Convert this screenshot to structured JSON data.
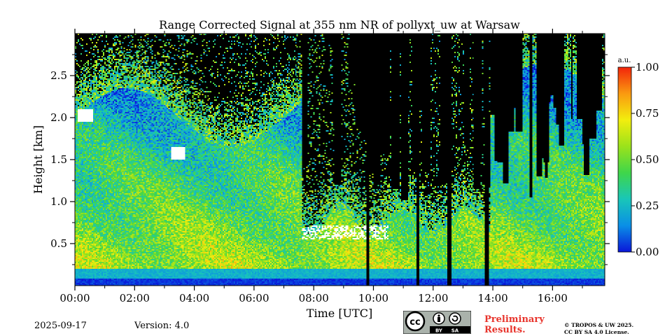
{
  "chart_data": {
    "type": "heatmap",
    "title": "Range Corrected Signal at 355 nm NR of pollyxt_uw at Warsaw",
    "xlabel": "Time [UTC]",
    "ylabel": "Height [km]",
    "x_ticks": [
      "00:00",
      "02:00",
      "04:00",
      "06:00",
      "08:00",
      "10:00",
      "12:00",
      "14:00",
      "16:00"
    ],
    "x_tick_hours": [
      0,
      2,
      4,
      6,
      8,
      10,
      12,
      14,
      16
    ],
    "xlim_hours": [
      0,
      17.75
    ],
    "y_ticks": [
      "0.5",
      "1.0",
      "1.5",
      "2.0",
      "2.5"
    ],
    "y_tick_values": [
      0.5,
      1.0,
      1.5,
      2.0,
      2.5
    ],
    "ylim_km": [
      0,
      3.0
    ],
    "colorbar": {
      "unit": "a.u.",
      "ticks": [
        "0.00",
        "0.25",
        "0.50",
        "0.75",
        "1.00"
      ],
      "tick_values": [
        0,
        0.25,
        0.5,
        0.75,
        1.0
      ],
      "colormap": [
        "#0a16d9",
        "#0a8fe6",
        "#19c6b8",
        "#3fd64a",
        "#9be21b",
        "#f2ee0e",
        "#fa9a10",
        "#f2240a"
      ]
    },
    "grid": false,
    "no_signal_color": "#000000",
    "cloud_color": "#ffffff"
  },
  "footer": {
    "date": "2025-09-17",
    "version": "Version: 4.0",
    "preliminary_line1": "Preliminary",
    "preliminary_line2": "Results.",
    "copyright_line1": "© TROPOS & UW 2025.",
    "copyright_line2": "CC BY SA 4.0 License.",
    "cc_label": "cc",
    "by_label": "BY",
    "sa_label": "SA"
  }
}
